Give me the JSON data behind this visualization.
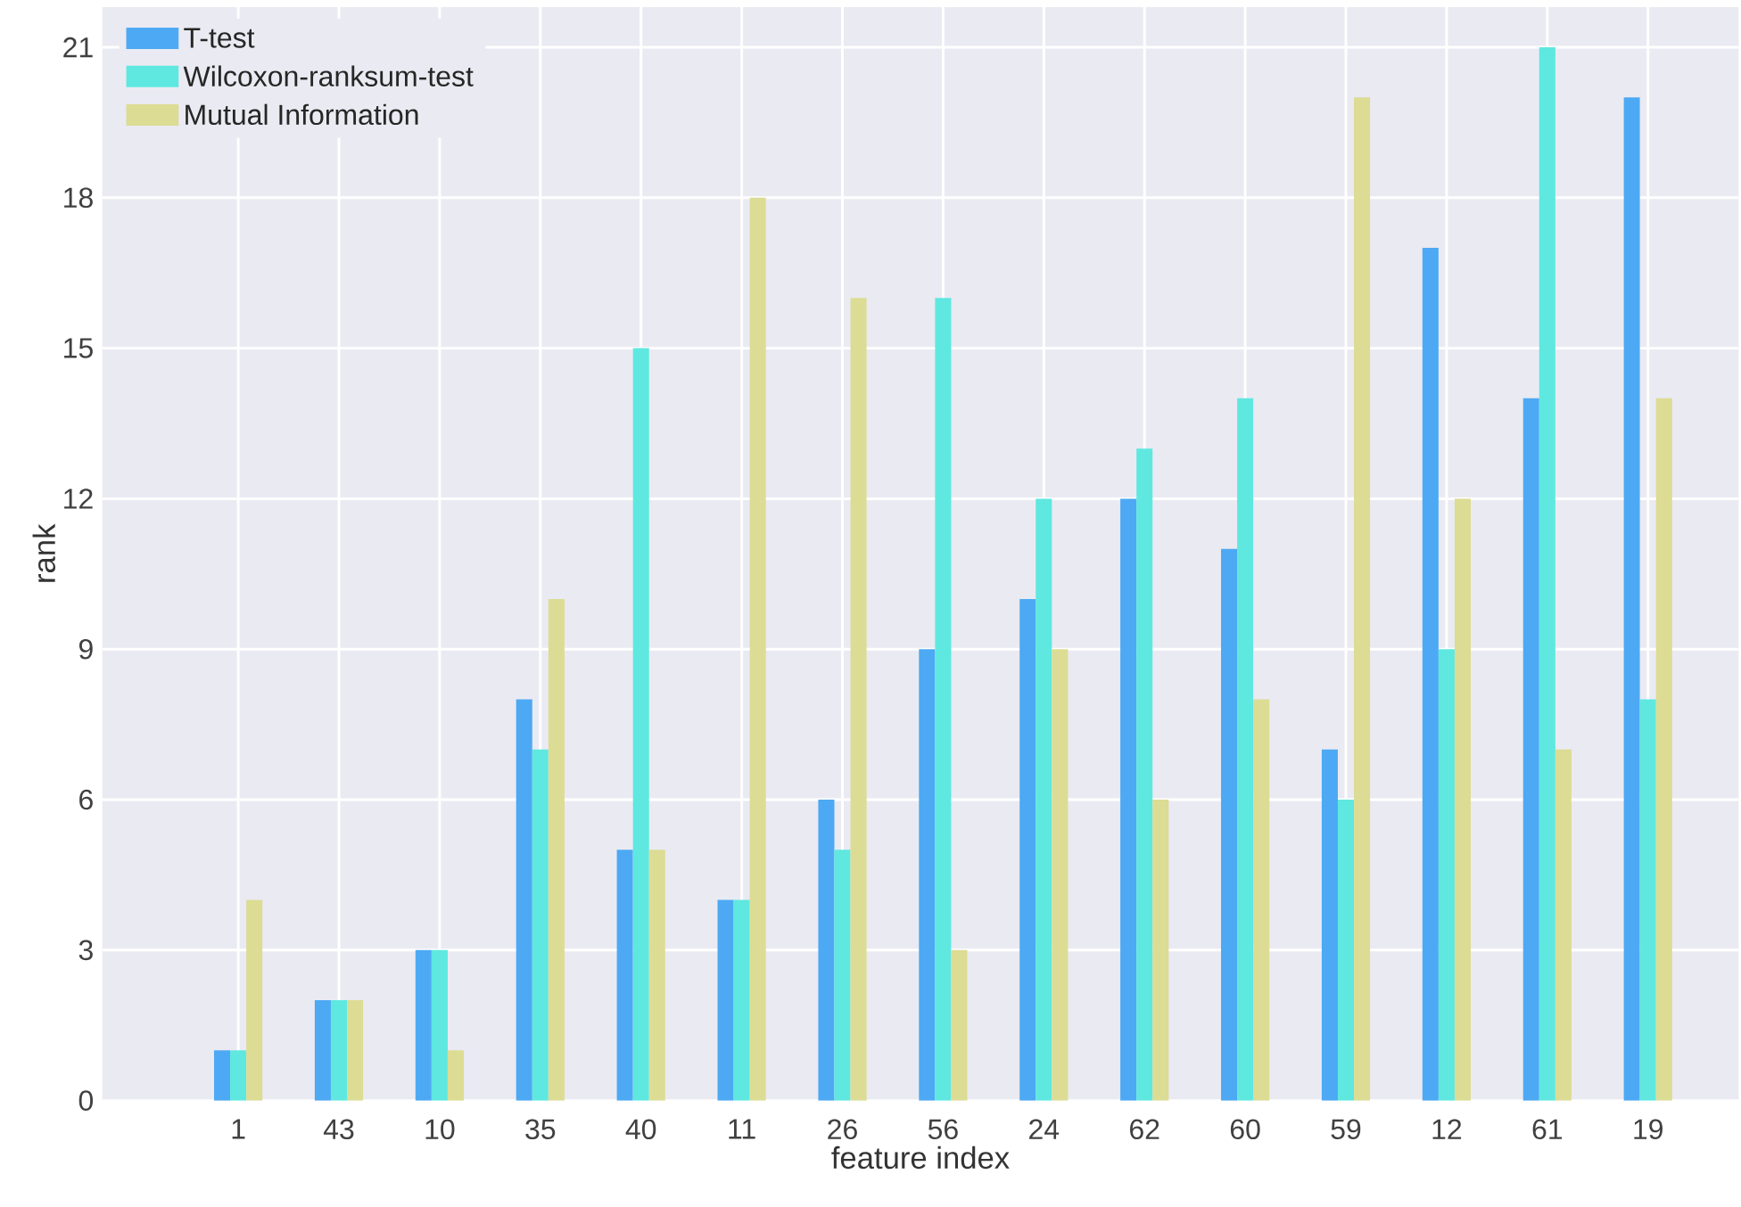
{
  "chart_data": {
    "type": "bar",
    "xlabel": "feature index",
    "ylabel": "rank",
    "categories": [
      "1",
      "43",
      "10",
      "35",
      "40",
      "11",
      "26",
      "56",
      "24",
      "62",
      "60",
      "59",
      "12",
      "61",
      "19"
    ],
    "series": [
      {
        "name": "T-test",
        "color": "#4da9f3",
        "values": [
          1,
          2,
          3,
          8,
          5,
          4,
          6,
          9,
          10,
          12,
          11,
          7,
          17,
          14,
          20
        ]
      },
      {
        "name": "Wilcoxon-ranksum-test",
        "color": "#5ee8e0",
        "values": [
          1,
          2,
          3,
          7,
          15,
          4,
          5,
          16,
          12,
          13,
          14,
          6,
          9,
          21,
          8
        ]
      },
      {
        "name": "Mutual Information",
        "color": "#dcdc94",
        "values": [
          4,
          2,
          1,
          10,
          5,
          18,
          16,
          3,
          9,
          6,
          8,
          20,
          12,
          7,
          14
        ]
      }
    ],
    "ylim": [
      0,
      21.8
    ],
    "yticks": [
      0,
      3,
      6,
      9,
      12,
      15,
      18,
      21
    ],
    "grid": true,
    "legend": "top left"
  }
}
